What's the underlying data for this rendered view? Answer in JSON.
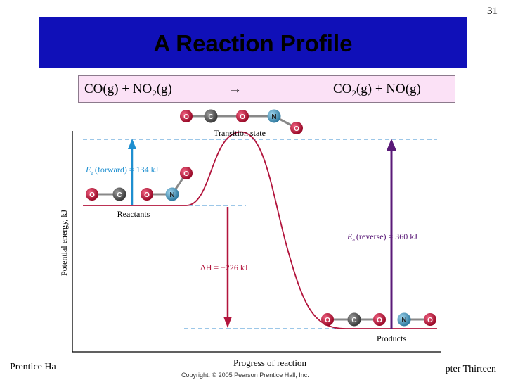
{
  "slide": {
    "number": "31",
    "title": "A Reaction Profile"
  },
  "equation": {
    "reactant_1": "CO(g)",
    "plus": "+",
    "reactant_2_prefix": "NO",
    "reactant_2_sub": "2",
    "reactant_2_suffix": "(g)",
    "arrow": "→",
    "product_1_prefix": "CO",
    "product_1_sub": "2",
    "product_1_suffix": "(g)",
    "product_2": "NO(g)"
  },
  "diagram": {
    "y_axis_label": "Potential energy, kJ",
    "x_axis_label": "Progress of reaction",
    "transition_state_label": "Transition state",
    "reactants_label": "Reactants",
    "products_label": "Products",
    "ea_forward_prefix": "E",
    "ea_forward_sub": "a",
    "ea_forward_text": "(forward) = 134 kJ",
    "ea_reverse_prefix": "E",
    "ea_reverse_sub": "a",
    "ea_reverse_text": "(reverse) = 360 kJ",
    "delta_h_text": "ΔH = −226 kJ",
    "atoms": {
      "oxygen": "O",
      "carbon": "C",
      "nitrogen": "N"
    },
    "colors": {
      "curve": "#b2143c",
      "forward_arrow": "#1e8fd0",
      "delta_h_arrow": "#b2143c",
      "reverse_arrow": "#5a1a78",
      "dashed_line": "#3a8fd0",
      "oxygen": "#b0102e",
      "carbon": "#555555",
      "nitrogen": "#3b8fb4"
    }
  },
  "footer": {
    "left": "Prentice Ha",
    "right": "pter Thirteen",
    "copyright": "Copyright: © 2005 Pearson Prentice Hall, Inc."
  }
}
